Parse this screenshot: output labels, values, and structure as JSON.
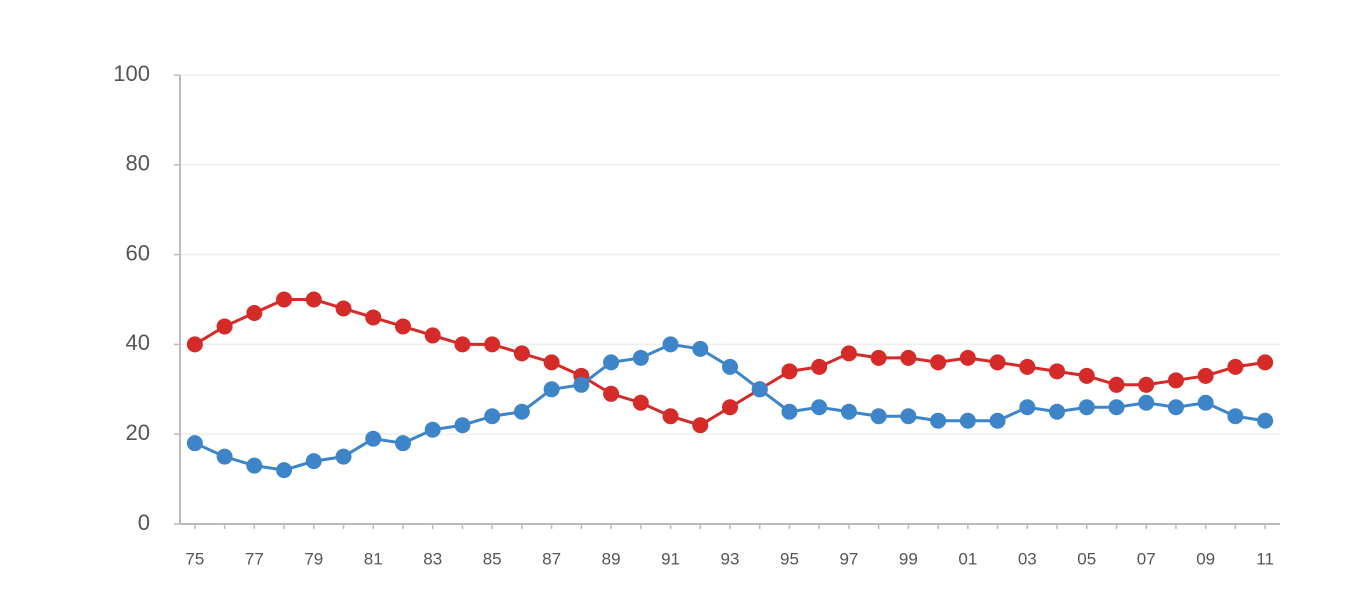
{
  "chart_data": {
    "type": "line",
    "categories": [
      "75",
      null,
      "77",
      null,
      "79",
      null,
      "81",
      null,
      "83",
      null,
      "85",
      null,
      "87",
      null,
      "89",
      null,
      "91",
      null,
      "93",
      null,
      "95",
      null,
      "97",
      null,
      "99",
      null,
      "01",
      null,
      "03",
      null,
      "05",
      null,
      "07",
      null,
      "09",
      null,
      "11"
    ],
    "series": [
      {
        "color": "#d42a28",
        "values": [
          40,
          44,
          47,
          50,
          50,
          48,
          46,
          44,
          42,
          40,
          40,
          38,
          36,
          33,
          29,
          27,
          24,
          22,
          26,
          30,
          34,
          35,
          38,
          37,
          37,
          36,
          37,
          36,
          35,
          34,
          33,
          31,
          31,
          32,
          33,
          35,
          36
        ]
      },
      {
        "color": "#3d85c8",
        "values": [
          18,
          15,
          13,
          12,
          14,
          15,
          19,
          18,
          21,
          22,
          24,
          25,
          30,
          31,
          36,
          37,
          40,
          39,
          35,
          30,
          25,
          26,
          25,
          24,
          24,
          23,
          23,
          23,
          26,
          25,
          26,
          26,
          27,
          26,
          27,
          24,
          23
        ]
      }
    ],
    "ylim": [
      0,
      100
    ],
    "yticks": [
      0,
      20,
      40,
      60,
      80,
      100
    ],
    "grid": true
  }
}
